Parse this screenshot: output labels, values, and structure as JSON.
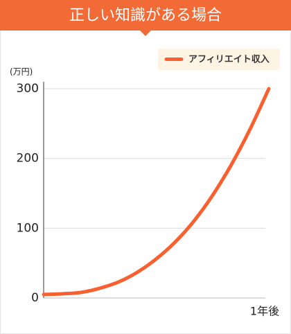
{
  "chart_data": {
    "type": "line",
    "title": "正しい知識がある場合",
    "y_label": "(万円)",
    "categories": [
      null,
      null,
      null,
      null,
      null,
      null,
      null,
      null,
      null,
      null,
      null,
      null,
      "1年後"
    ],
    "series": [
      {
        "name": "アフィリエイト収入",
        "color": "#f8612f",
        "values": [
          5,
          6,
          8,
          14,
          23,
          37,
          56,
          80,
          110,
          147,
          191,
          242,
          300
        ]
      }
    ],
    "ylim": [
      0,
      300
    ],
    "yticks": [
      0,
      100,
      200,
      300
    ],
    "grid": true
  }
}
